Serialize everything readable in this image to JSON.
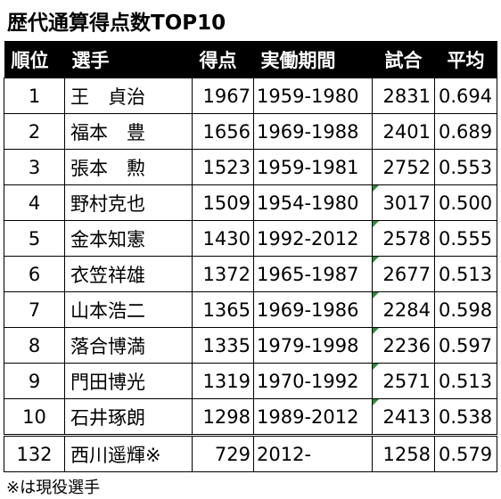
{
  "title": "歴代通算得点数TOP10",
  "headers": {
    "rank": "順位",
    "player": "選手",
    "points": "得点",
    "period": "実働期間",
    "games": "試合",
    "average": "平均"
  },
  "rows": [
    {
      "rank": "1",
      "player": "王　貞治",
      "points": "1967",
      "period": "1959-1980",
      "games": "2831",
      "average": "0.694",
      "flag": false
    },
    {
      "rank": "2",
      "player": "福本　豊",
      "points": "1656",
      "period": "1969-1988",
      "games": "2401",
      "average": "0.689",
      "flag": false
    },
    {
      "rank": "3",
      "player": "張本　勲",
      "points": "1523",
      "period": "1959-1981",
      "games": "2752",
      "average": "0.553",
      "flag": false
    },
    {
      "rank": "4",
      "player": "野村克也",
      "points": "1509",
      "period": "1954-1980",
      "games": "3017",
      "average": "0.500",
      "flag": true
    },
    {
      "rank": "5",
      "player": "金本知憲",
      "points": "1430",
      "period": "1992-2012",
      "games": "2578",
      "average": "0.555",
      "flag": true
    },
    {
      "rank": "6",
      "player": "衣笠祥雄",
      "points": "1372",
      "period": "1965-1987",
      "games": "2677",
      "average": "0.513",
      "flag": true
    },
    {
      "rank": "7",
      "player": "山本浩二",
      "points": "1365",
      "period": "1969-1986",
      "games": "2284",
      "average": "0.598",
      "flag": true
    },
    {
      "rank": "8",
      "player": "落合博満",
      "points": "1335",
      "period": "1979-1998",
      "games": "2236",
      "average": "0.597",
      "flag": true
    },
    {
      "rank": "9",
      "player": "門田博光",
      "points": "1319",
      "period": "1970-1992",
      "games": "2571",
      "average": "0.513",
      "flag": true
    },
    {
      "rank": "10",
      "player": "石井琢朗",
      "points": "1298",
      "period": "1989-2012",
      "games": "2413",
      "average": "0.538",
      "flag": true
    }
  ],
  "special_row": {
    "rank": "132",
    "player": "西川遥輝※",
    "points": "729",
    "period": "2012-",
    "games": "1258",
    "average": "0.579"
  },
  "note": "※は現役選手",
  "colors": {
    "header_bg": "#000000",
    "header_text": "#ffffff",
    "flag": "#2e8b3d"
  }
}
